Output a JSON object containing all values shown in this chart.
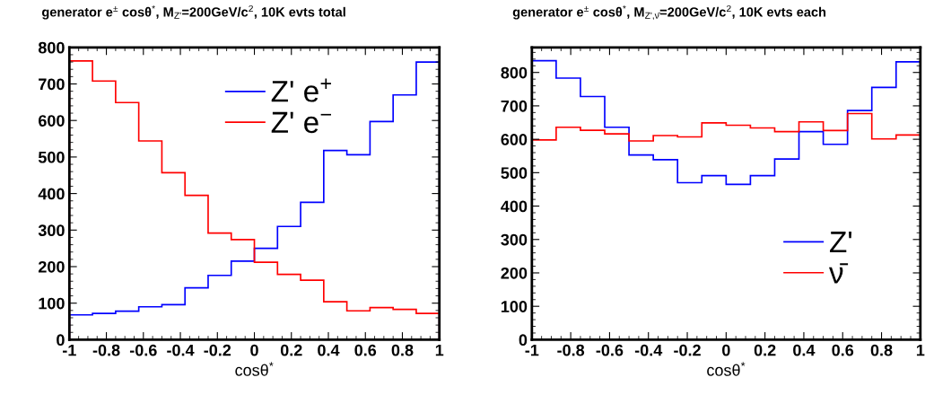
{
  "chart_data": [
    {
      "type": "histogram",
      "title": "generator e$^{±}$ cosθ$^{*}$, M$_{Z'}$=200GeV/c$^{2}$, 10K evts total",
      "xlabel": "cosθ$^{*}$",
      "bins": [
        -1,
        -0.875,
        -0.75,
        -0.625,
        -0.5,
        -0.375,
        -0.25,
        -0.125,
        0,
        0.125,
        0.25,
        0.375,
        0.5,
        0.625,
        0.75,
        0.875,
        1
      ],
      "series": [
        {
          "name": "Z' e$^{+}$",
          "color": "#0000ff",
          "values": [
            68,
            72,
            78,
            90,
            96,
            142,
            176,
            215,
            250,
            310,
            376,
            518,
            506,
            597,
            670,
            760
          ]
        },
        {
          "name": "Z' e$^{−}$",
          "color": "#ff0000",
          "values": [
            763,
            708,
            649,
            544,
            457,
            395,
            292,
            274,
            212,
            179,
            163,
            104,
            79,
            88,
            83,
            72
          ]
        }
      ],
      "xlim": [
        -1,
        1
      ],
      "xticks": [
        -1,
        -0.8,
        -0.6,
        -0.4,
        -0.2,
        0,
        0.2,
        0.4,
        0.6,
        0.8,
        1
      ],
      "ylim": [
        0,
        800
      ],
      "yticks": [
        0,
        100,
        200,
        300,
        400,
        500,
        600,
        700,
        800
      ],
      "grid": false,
      "legend": "top"
    },
    {
      "type": "histogram",
      "title": "generator e$^{±}$ cosθ$^{*}$, M$_{Z',ν̄}$=200GeV/c$^{2}$, 10K evts each",
      "xlabel": "cosθ$^{*}$",
      "bins": [
        -1,
        -0.875,
        -0.75,
        -0.625,
        -0.5,
        -0.375,
        -0.25,
        -0.125,
        0,
        0.125,
        0.25,
        0.375,
        0.5,
        0.625,
        0.75,
        0.875,
        1
      ],
      "series": [
        {
          "name": "Z'",
          "color": "#0000ff",
          "values": [
            835,
            783,
            728,
            636,
            553,
            539,
            470,
            491,
            465,
            491,
            541,
            623,
            585,
            686,
            755,
            832
          ]
        },
        {
          "name": "ν̄",
          "color": "#ff0000",
          "values": [
            598,
            636,
            627,
            616,
            595,
            611,
            607,
            649,
            642,
            634,
            623,
            652,
            626,
            677,
            601,
            613
          ]
        }
      ],
      "xlim": [
        -1,
        1
      ],
      "xticks": [
        -1,
        -0.8,
        -0.6,
        -0.4,
        -0.2,
        0,
        0.2,
        0.4,
        0.6,
        0.8,
        1
      ],
      "ylim": [
        0,
        875
      ],
      "yticks": [
        0,
        100,
        200,
        300,
        400,
        500,
        600,
        700,
        800
      ],
      "grid": false,
      "legend": "bottom right"
    }
  ]
}
